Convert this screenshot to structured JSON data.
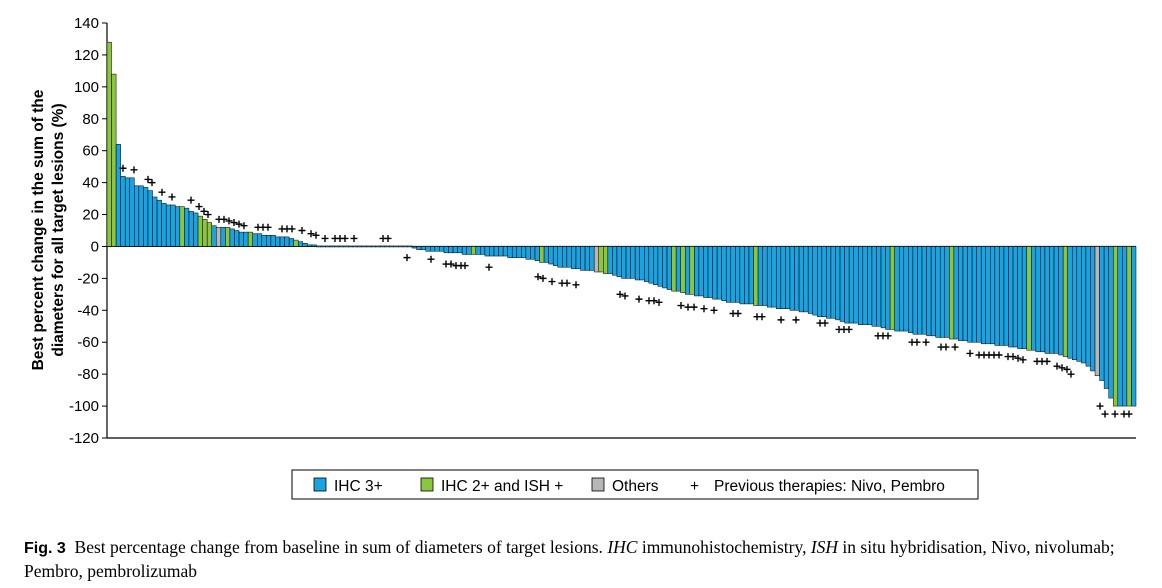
{
  "chart_data": {
    "type": "bar",
    "title": "",
    "ylabel": "Best percent change in the sum of the diameters for all target lesions (%)",
    "ylabel_lines": [
      "Best percent change in the sum of the",
      "diameters for all target lesions (%)"
    ],
    "xlabel": "",
    "ylim": [
      -120,
      140
    ],
    "yticks": [
      140,
      120,
      100,
      80,
      60,
      40,
      20,
      0,
      -20,
      -40,
      -60,
      -80,
      -100,
      -120
    ],
    "legend": {
      "position": "bottom",
      "items": [
        {
          "label": "IHC 3+",
          "kind": "swatch",
          "color": "#1aa3e0"
        },
        {
          "label": "IHC 2+ and ISH +",
          "kind": "swatch",
          "color": "#8cc63f"
        },
        {
          "label": "Others",
          "kind": "swatch",
          "color": "#b7b7b7"
        },
        {
          "label": "Previous therapies: Nivo, Pembro",
          "kind": "marker",
          "symbol": "+"
        }
      ]
    },
    "colors": {
      "A": "#1aa3e0",
      "G": "#8cc63f",
      "O": "#b7b7b7"
    },
    "series": [
      {
        "name": "positive",
        "values": [
          128,
          108,
          64,
          44,
          43,
          43,
          38,
          38,
          37,
          35,
          31,
          29,
          27,
          26,
          26,
          25,
          25,
          24,
          22,
          21,
          19,
          17,
          15,
          13,
          12,
          12,
          12,
          11,
          10,
          9,
          9,
          9,
          8,
          8,
          7,
          7,
          7,
          6,
          6,
          6,
          5,
          4,
          3,
          2,
          1,
          1,
          0,
          0,
          0,
          0,
          0,
          0,
          0,
          0,
          0,
          0,
          0,
          0,
          0,
          0,
          0,
          0,
          0,
          0,
          0,
          0,
          0
        ],
        "colors": "GGAAAAAAAAAAAAAAGAAAGGGAOAGAAAAGAAAAAAAAAGAAAAAAAAAAAAAAAAAAAAAAAA"
      },
      {
        "name": "negative",
        "values": [
          -1,
          -2,
          -2,
          -3,
          -3,
          -3,
          -3,
          -4,
          -4,
          -4,
          -4,
          -5,
          -5,
          -5,
          -5,
          -5,
          -6,
          -6,
          -6,
          -6,
          -6,
          -7,
          -7,
          -7,
          -7,
          -8,
          -8,
          -9,
          -10,
          -10,
          -11,
          -12,
          -13,
          -13,
          -13,
          -14,
          -14,
          -15,
          -15,
          -15,
          -16,
          -16,
          -17,
          -17,
          -18,
          -19,
          -20,
          -20,
          -20,
          -21,
          -21,
          -22,
          -23,
          -24,
          -25,
          -26,
          -27,
          -28,
          -28,
          -29,
          -30,
          -30,
          -31,
          -31,
          -32,
          -32,
          -33,
          -33,
          -34,
          -35,
          -35,
          -35,
          -36,
          -36,
          -36,
          -37,
          -37,
          -37,
          -38,
          -38,
          -39,
          -39,
          -39,
          -40,
          -40,
          -41,
          -41,
          -42,
          -43,
          -44,
          -44,
          -45,
          -45,
          -46,
          -47,
          -48,
          -48,
          -48,
          -49,
          -49,
          -49,
          -50,
          -50,
          -51,
          -52,
          -52,
          -53,
          -53,
          -53,
          -54,
          -55,
          -55,
          -55,
          -56,
          -56,
          -57,
          -57,
          -57,
          -58,
          -58,
          -59,
          -59,
          -60,
          -60,
          -60,
          -61,
          -61,
          -61,
          -62,
          -62,
          -62,
          -63,
          -63,
          -64,
          -64,
          -65,
          -65,
          -66,
          -66,
          -67,
          -67,
          -67,
          -68,
          -69,
          -70,
          -71,
          -72,
          -73,
          -75,
          -78,
          -81,
          -84,
          -89,
          -95,
          -100,
          -100,
          -100,
          -100,
          -100
        ],
        "colors": "AAAAAAAAAAAAAGAAAAAAAAAAAAAAGAAAAAAAAAAAOGGAAAAAAAAAAAAAAGAGAGAAAAAAAAAAAAAGAAAAAAAAAAAAAAAAAAAAAAAAAAAAAGAAAAAAAAAAAAGAAAAAAAAAAAAAAAAGAAAAAAAGAAAAAAOAAAGAAGA"
      }
    ],
    "previous_therapy_markers": [
      {
        "x": 123,
        "y": 49
      },
      {
        "x": 134,
        "y": 48
      },
      {
        "x": 148,
        "y": 42
      },
      {
        "x": 152,
        "y": 40
      },
      {
        "x": 162,
        "y": 34
      },
      {
        "x": 172,
        "y": 31
      },
      {
        "x": 191,
        "y": 29
      },
      {
        "x": 199,
        "y": 25
      },
      {
        "x": 204,
        "y": 22
      },
      {
        "x": 208,
        "y": 20
      },
      {
        "x": 219,
        "y": 17
      },
      {
        "x": 224,
        "y": 17
      },
      {
        "x": 229,
        "y": 16
      },
      {
        "x": 234,
        "y": 15
      },
      {
        "x": 239,
        "y": 14
      },
      {
        "x": 244,
        "y": 13
      },
      {
        "x": 258,
        "y": 12
      },
      {
        "x": 263,
        "y": 12
      },
      {
        "x": 268,
        "y": 12
      },
      {
        "x": 282,
        "y": 11
      },
      {
        "x": 287,
        "y": 11
      },
      {
        "x": 292,
        "y": 11
      },
      {
        "x": 302,
        "y": 10
      },
      {
        "x": 311,
        "y": 8
      },
      {
        "x": 316,
        "y": 7
      },
      {
        "x": 325,
        "y": 5
      },
      {
        "x": 335,
        "y": 5
      },
      {
        "x": 340,
        "y": 5
      },
      {
        "x": 345,
        "y": 5
      },
      {
        "x": 354,
        "y": 5
      },
      {
        "x": 383,
        "y": 5
      },
      {
        "x": 388,
        "y": 5
      },
      {
        "x": 407,
        "y": -7
      },
      {
        "x": 431,
        "y": -8
      },
      {
        "x": 446,
        "y": -11
      },
      {
        "x": 451,
        "y": -11
      },
      {
        "x": 456,
        "y": -12
      },
      {
        "x": 461,
        "y": -12
      },
      {
        "x": 465,
        "y": -12
      },
      {
        "x": 489,
        "y": -13
      },
      {
        "x": 538,
        "y": -19
      },
      {
        "x": 543,
        "y": -20
      },
      {
        "x": 552,
        "y": -22
      },
      {
        "x": 562,
        "y": -23
      },
      {
        "x": 567,
        "y": -23
      },
      {
        "x": 576,
        "y": -24
      },
      {
        "x": 620,
        "y": -30
      },
      {
        "x": 625,
        "y": -31
      },
      {
        "x": 639,
        "y": -33
      },
      {
        "x": 649,
        "y": -34
      },
      {
        "x": 654,
        "y": -34
      },
      {
        "x": 659,
        "y": -35
      },
      {
        "x": 681,
        "y": -37
      },
      {
        "x": 688,
        "y": -38
      },
      {
        "x": 694,
        "y": -38
      },
      {
        "x": 704,
        "y": -39
      },
      {
        "x": 714,
        "y": -40
      },
      {
        "x": 733,
        "y": -42
      },
      {
        "x": 738,
        "y": -42
      },
      {
        "x": 757,
        "y": -44
      },
      {
        "x": 762,
        "y": -44
      },
      {
        "x": 781,
        "y": -46
      },
      {
        "x": 796,
        "y": -46
      },
      {
        "x": 820,
        "y": -48
      },
      {
        "x": 825,
        "y": -48
      },
      {
        "x": 839,
        "y": -52
      },
      {
        "x": 844,
        "y": -52
      },
      {
        "x": 849,
        "y": -52
      },
      {
        "x": 878,
        "y": -56
      },
      {
        "x": 883,
        "y": -56
      },
      {
        "x": 888,
        "y": -56
      },
      {
        "x": 912,
        "y": -60
      },
      {
        "x": 917,
        "y": -60
      },
      {
        "x": 926,
        "y": -60
      },
      {
        "x": 941,
        "y": -63
      },
      {
        "x": 946,
        "y": -63
      },
      {
        "x": 955,
        "y": -63
      },
      {
        "x": 970,
        "y": -67
      },
      {
        "x": 979,
        "y": -68
      },
      {
        "x": 984,
        "y": -68
      },
      {
        "x": 989,
        "y": -68
      },
      {
        "x": 994,
        "y": -68
      },
      {
        "x": 999,
        "y": -68
      },
      {
        "x": 1008,
        "y": -69
      },
      {
        "x": 1013,
        "y": -69
      },
      {
        "x": 1018,
        "y": -70
      },
      {
        "x": 1023,
        "y": -71
      },
      {
        "x": 1037,
        "y": -72
      },
      {
        "x": 1042,
        "y": -72
      },
      {
        "x": 1047,
        "y": -72
      },
      {
        "x": 1057,
        "y": -75
      },
      {
        "x": 1062,
        "y": -76
      },
      {
        "x": 1067,
        "y": -77
      },
      {
        "x": 1071,
        "y": -80
      },
      {
        "x": 1100,
        "y": -100
      },
      {
        "x": 1105,
        "y": -105
      },
      {
        "x": 1115,
        "y": -105
      },
      {
        "x": 1124,
        "y": -105
      },
      {
        "x": 1129,
        "y": -105
      }
    ]
  },
  "caption": {
    "label": "Fig. 3",
    "text_1": "Best percentage change from baseline in sum of diameters of target lesions.",
    "abbr_1": "IHC",
    "text_2": "immunohistochemistry,",
    "abbr_2": "ISH",
    "text_3": "in situ hybridisation, Nivo, nivolumab; Pembro, pembrolizumab"
  }
}
